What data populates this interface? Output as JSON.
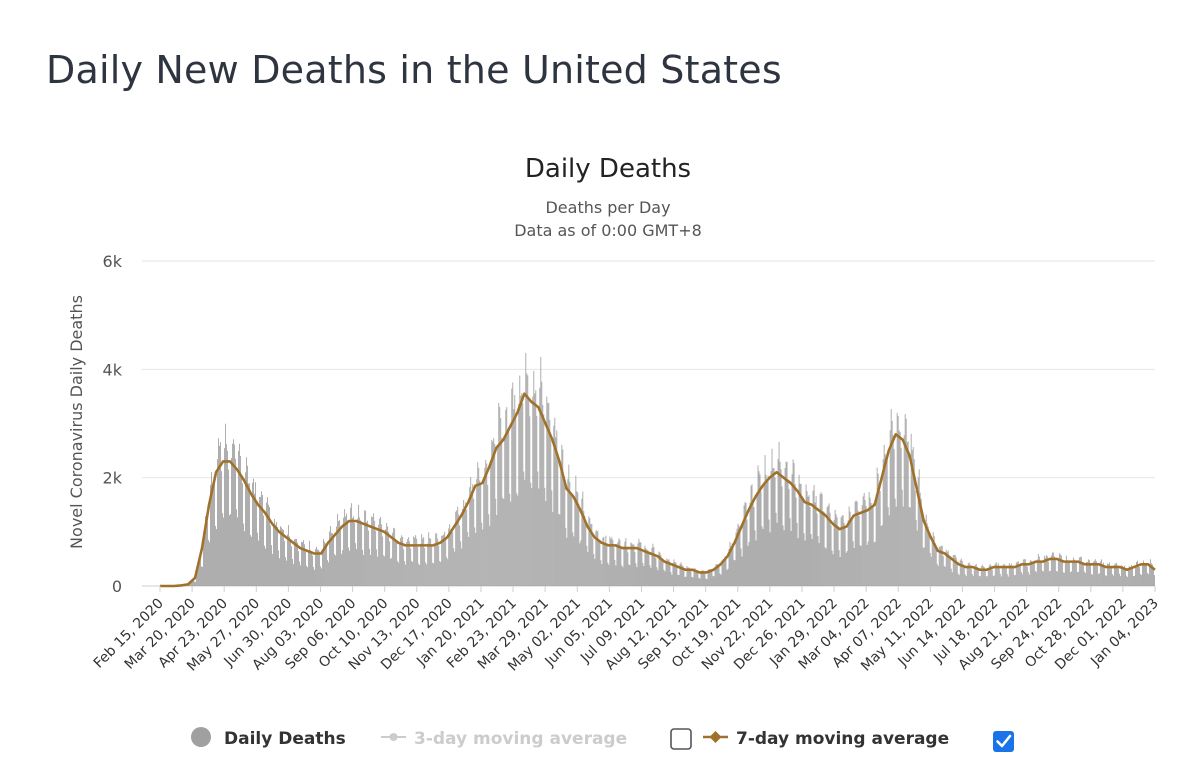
{
  "page": {
    "title": "Daily New Deaths in the United States"
  },
  "legend": {
    "daily_label": "Daily Deaths",
    "ma3_label": "3-day moving average",
    "ma3_checked": false,
    "ma7_label": "7-day moving average",
    "ma7_checked": true
  },
  "colors": {
    "bars": "#a0a0a0",
    "ma7": "#a0712a",
    "ma3": "#cccccc",
    "grid": "#e6e6e6",
    "checkbox": "#1a73e8"
  },
  "chart_data": {
    "type": "bar",
    "title": "Daily Deaths",
    "subtitle": [
      "Deaths per Day",
      "Data as of 0:00 GMT+8"
    ],
    "xlabel": "",
    "ylabel": "Novel Coronavirus Daily Deaths",
    "ylim": [
      0,
      6000
    ],
    "yticks": [
      0,
      2000,
      4000,
      6000
    ],
    "ytick_labels": [
      "0",
      "2k",
      "4k",
      "6k"
    ],
    "x_ticks": [
      "Feb 15, 2020",
      "Mar 20, 2020",
      "Apr 23, 2020",
      "May 27, 2020",
      "Jun 30, 2020",
      "Aug 03, 2020",
      "Sep 06, 2020",
      "Oct 10, 2020",
      "Nov 13, 2020",
      "Dec 17, 2020",
      "Jan 20, 2021",
      "Feb 23, 2021",
      "Mar 29, 2021",
      "May 02, 2021",
      "Jun 05, 2021",
      "Jul 09, 2021",
      "Aug 12, 2021",
      "Sep 15, 2021",
      "Oct 19, 2021",
      "Nov 22, 2021",
      "Dec 26, 2021",
      "Jan 29, 2022",
      "Mar 04, 2022",
      "Apr 07, 2022",
      "May 11, 2022",
      "Jun 14, 2022",
      "Jul 18, 2022",
      "Aug 21, 2022",
      "Sep 24, 2022",
      "Oct 28, 2022",
      "Dec 01, 2022",
      "Jan 04, 2023"
    ],
    "series": [
      {
        "name": "Daily Deaths",
        "type": "bar",
        "weekly_values": [
          0,
          0,
          0,
          10,
          30,
          150,
          700,
          1500,
          2100,
          2300,
          2300,
          2150,
          1950,
          1700,
          1500,
          1350,
          1150,
          1000,
          900,
          800,
          700,
          650,
          600,
          600,
          800,
          950,
          1100,
          1200,
          1200,
          1150,
          1100,
          1050,
          1000,
          900,
          800,
          750,
          750,
          750,
          750,
          750,
          800,
          900,
          1100,
          1300,
          1550,
          1850,
          1900,
          2200,
          2550,
          2700,
          2950,
          3200,
          3550,
          3400,
          3300,
          3000,
          2700,
          2300,
          1800,
          1650,
          1400,
          1100,
          900,
          800,
          750,
          750,
          700,
          700,
          700,
          650,
          600,
          550,
          450,
          400,
          350,
          300,
          300,
          250,
          250,
          300,
          400,
          550,
          800,
          1100,
          1400,
          1650,
          1850,
          2000,
          2100,
          2000,
          1900,
          1750,
          1550,
          1500,
          1400,
          1300,
          1150,
          1050,
          1100,
          1300,
          1350,
          1400,
          1500,
          2000,
          2500,
          2800,
          2700,
          2400,
          1800,
          1200,
          900,
          650,
          600,
          500,
          400,
          350,
          350,
          300,
          300,
          350,
          350,
          350,
          350,
          400,
          400,
          450,
          450,
          500,
          500,
          450,
          450,
          450,
          400,
          400,
          400,
          350,
          350,
          350,
          300,
          350,
          400,
          400,
          300
        ]
      },
      {
        "name": "7-day moving average",
        "type": "line",
        "weekly_values": [
          0,
          0,
          0,
          10,
          30,
          150,
          700,
          1500,
          2100,
          2300,
          2300,
          2150,
          1950,
          1700,
          1500,
          1350,
          1150,
          1000,
          900,
          800,
          700,
          650,
          600,
          600,
          800,
          950,
          1100,
          1200,
          1200,
          1150,
          1100,
          1050,
          1000,
          900,
          800,
          750,
          750,
          750,
          750,
          750,
          800,
          900,
          1100,
          1300,
          1550,
          1850,
          1900,
          2200,
          2550,
          2700,
          2950,
          3200,
          3550,
          3400,
          3300,
          3000,
          2700,
          2300,
          1800,
          1650,
          1400,
          1100,
          900,
          800,
          750,
          750,
          700,
          700,
          700,
          650,
          600,
          550,
          450,
          400,
          350,
          300,
          300,
          250,
          250,
          300,
          400,
          550,
          800,
          1100,
          1400,
          1650,
          1850,
          2000,
          2100,
          2000,
          1900,
          1750,
          1550,
          1500,
          1400,
          1300,
          1150,
          1050,
          1100,
          1300,
          1350,
          1400,
          1500,
          2000,
          2500,
          2800,
          2700,
          2400,
          1800,
          1200,
          900,
          650,
          600,
          500,
          400,
          350,
          350,
          300,
          300,
          350,
          350,
          350,
          350,
          400,
          400,
          450,
          450,
          500,
          500,
          450,
          450,
          450,
          400,
          400,
          400,
          350,
          350,
          350,
          300,
          350,
          400,
          400,
          300
        ]
      }
    ]
  }
}
